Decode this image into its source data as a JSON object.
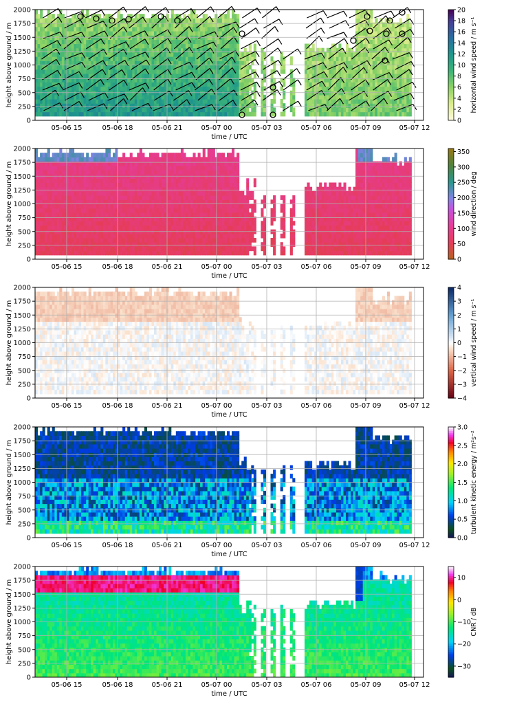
{
  "chart_data": [
    {
      "type": "heatmap",
      "variable": "horizontal wind speed with wind barbs",
      "xlabel": "time / UTC",
      "ylabel": "height above ground / m",
      "x_ticks": [
        "05-06 15",
        "05-06 18",
        "05-06 21",
        "05-07 00",
        "05-07 03",
        "05-07 06",
        "05-07 09",
        "05-07 12"
      ],
      "y_ticks": [
        "0",
        "250",
        "500",
        "750",
        "1000",
        "1250",
        "1500",
        "1750",
        "2000"
      ],
      "ylim": [
        0,
        2000
      ],
      "xlim": [
        "05-06 12:30",
        "05-07 12:45"
      ],
      "colorbar": {
        "label": "horizontal wind speed / m s⁻¹",
        "ticks": [
          "0",
          "2",
          "4",
          "6",
          "8",
          "10",
          "12",
          "14",
          "16",
          "18",
          "20"
        ],
        "range": [
          0,
          20
        ],
        "colormap": "viridis_r"
      },
      "grid": true
    },
    {
      "type": "heatmap",
      "variable": "wind direction",
      "xlabel": "time / UTC",
      "ylabel": "height above ground / m",
      "x_ticks": [
        "05-06 15",
        "05-06 18",
        "05-06 21",
        "05-07 00",
        "05-07 03",
        "05-07 06",
        "05-07 09",
        "05-07 12"
      ],
      "y_ticks": [
        "0",
        "250",
        "500",
        "750",
        "1000",
        "1250",
        "1500",
        "1750",
        "2000"
      ],
      "ylim": [
        0,
        2000
      ],
      "colorbar": {
        "label": "wind direction / deg",
        "ticks": [
          "0",
          "50",
          "100",
          "150",
          "200",
          "250",
          "300",
          "350"
        ],
        "range": [
          0,
          360
        ],
        "colormap": "twilight-like"
      },
      "grid": true
    },
    {
      "type": "heatmap",
      "variable": "vertical wind speed",
      "xlabel": "time / UTC",
      "ylabel": "height above ground / m",
      "x_ticks": [
        "05-06 15",
        "05-06 18",
        "05-06 21",
        "05-07 00",
        "05-07 03",
        "05-07 06",
        "05-07 09",
        "05-07 12"
      ],
      "y_ticks": [
        "0",
        "250",
        "500",
        "750",
        "1000",
        "1250",
        "1500",
        "1750",
        "2000"
      ],
      "ylim": [
        0,
        2000
      ],
      "colorbar": {
        "label": "vertical wind speed / m s⁻¹",
        "ticks": [
          "−4",
          "−3",
          "−2",
          "−1",
          "0",
          "1",
          "2",
          "3",
          "4"
        ],
        "range": [
          -4,
          4
        ],
        "colormap": "RdBu"
      },
      "grid": true
    },
    {
      "type": "heatmap",
      "variable": "turbulent kinetic energy",
      "xlabel": "time / UTC",
      "ylabel": "height above ground / m",
      "x_ticks": [
        "05-06 15",
        "05-06 18",
        "05-06 21",
        "05-07 00",
        "05-07 03",
        "05-07 06",
        "05-07 09",
        "05-07 12"
      ],
      "y_ticks": [
        "0",
        "250",
        "500",
        "750",
        "1000",
        "1250",
        "1500",
        "1750",
        "2000"
      ],
      "ylim": [
        0,
        2000
      ],
      "colorbar": {
        "label": "turbulent kinetic energy / m²s⁻²",
        "ticks": [
          "0.0",
          "0.5",
          "1.0",
          "1.5",
          "2.0",
          "2.5",
          "3.0"
        ],
        "range": [
          0,
          3
        ],
        "colormap": "gist_ncar"
      },
      "grid": true
    },
    {
      "type": "heatmap",
      "variable": "CNR",
      "xlabel": "time / UTC",
      "ylabel": "height above ground / m",
      "x_ticks": [
        "05-06 15",
        "05-06 18",
        "05-06 21",
        "05-07 00",
        "05-07 03",
        "05-07 06",
        "05-07 09",
        "05-07 12"
      ],
      "y_ticks": [
        "0",
        "250",
        "500",
        "750",
        "1000",
        "1250",
        "1500",
        "1750",
        "2000"
      ],
      "ylim": [
        0,
        2000
      ],
      "colorbar": {
        "label": "CNR / dB",
        "ticks": [
          "−30",
          "−20",
          "−10",
          "0",
          "10"
        ],
        "range": [
          -35,
          15
        ],
        "colormap": "gist_ncar"
      },
      "grid": true
    }
  ]
}
